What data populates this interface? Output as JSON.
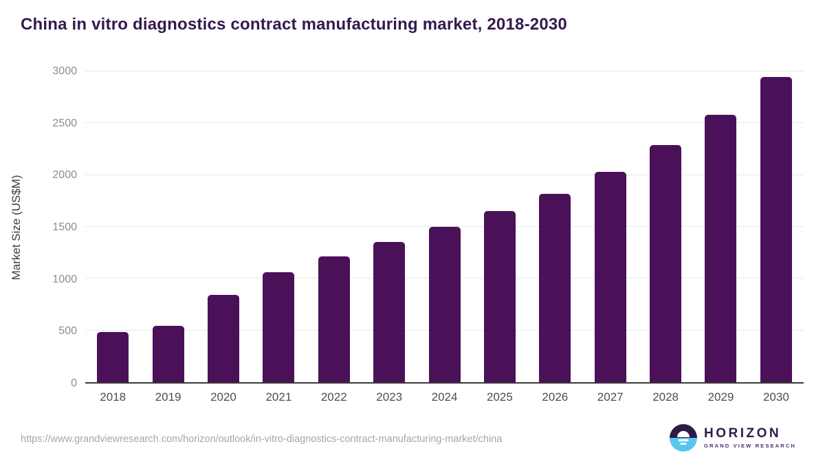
{
  "title": "China in vitro diagnostics contract manufacturing market, 2018-2030",
  "chart_data": {
    "type": "bar",
    "title": "China in vitro diagnostics contract manufacturing market, 2018-2030",
    "categories": [
      "2018",
      "2019",
      "2020",
      "2021",
      "2022",
      "2023",
      "2024",
      "2025",
      "2026",
      "2027",
      "2028",
      "2029",
      "2030"
    ],
    "values": [
      487,
      546,
      842,
      1063,
      1213,
      1356,
      1500,
      1652,
      1821,
      2028,
      2289,
      2585,
      2948
    ],
    "xlabel": "",
    "ylabel": "Market Size (US$M)",
    "ylim": [
      0,
      3000
    ],
    "yticks": [
      0,
      500,
      1000,
      1500,
      2000,
      2500,
      3000
    ],
    "grid": true,
    "legend": false,
    "bar_color": "#4a1158"
  },
  "footer": {
    "source_url": "https://www.grandviewresearch.com/horizon/outlook/in-vitro-diagnostics-contract-manufacturing-market/china",
    "logo": {
      "name": "HORIZON",
      "subtitle": "GRAND VIEW RESEARCH",
      "icon": "sun-over-horizon-icon"
    }
  },
  "colors": {
    "bar": "#4a1158",
    "title_text": "#35194d",
    "y_tick_text": "#8c8c8c",
    "x_tick_text": "#4d4d4d",
    "gridline": "#e8e8e8",
    "axis_line": "#3a3a3a",
    "url_text": "#a6a6a6",
    "logo_purple": "#2e1a47",
    "logo_blue": "#59c6f0"
  }
}
